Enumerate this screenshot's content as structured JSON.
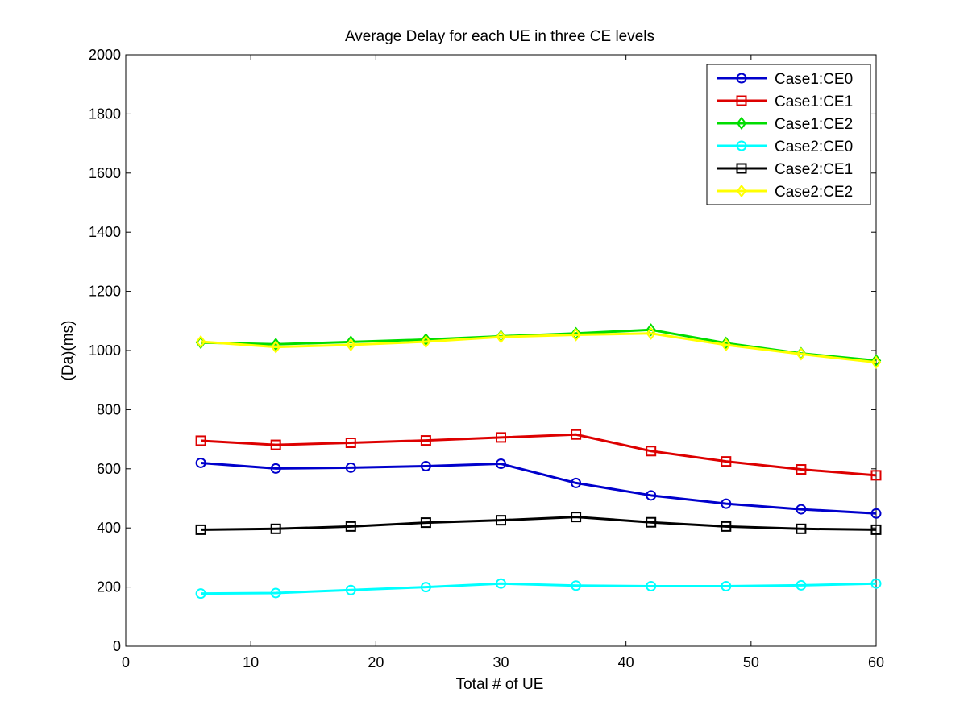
{
  "chart_data": {
    "type": "line",
    "title": "Average Delay for each UE in three CE levels",
    "xlabel": "Total # of UE",
    "ylabel": "(Da)(ms)",
    "xlim": [
      0,
      60
    ],
    "ylim": [
      0,
      2000
    ],
    "xticks": [
      0,
      10,
      20,
      30,
      40,
      50,
      60
    ],
    "yticks": [
      0,
      200,
      400,
      600,
      800,
      1000,
      1200,
      1400,
      1600,
      1800,
      2000
    ],
    "grid": false,
    "legend_position": "top-right",
    "x": [
      6,
      12,
      18,
      24,
      30,
      36,
      42,
      48,
      54,
      60
    ],
    "series": [
      {
        "name": "Case1:CE0",
        "color": "#0000cc",
        "marker": "circle",
        "values": [
          620,
          601,
          604,
          609,
          617,
          552,
          510,
          482,
          463,
          449
        ]
      },
      {
        "name": "Case1:CE1",
        "color": "#dd0000",
        "marker": "square",
        "values": [
          695,
          681,
          688,
          696,
          706,
          716,
          660,
          625,
          598,
          578
        ]
      },
      {
        "name": "Case1:CE2",
        "color": "#00dd00",
        "marker": "diamond",
        "values": [
          1027,
          1021,
          1029,
          1037,
          1048,
          1058,
          1070,
          1025,
          990,
          966
        ]
      },
      {
        "name": "Case2:CE0",
        "color": "#00ffff",
        "marker": "circle",
        "values": [
          178,
          180,
          190,
          200,
          212,
          205,
          203,
          203,
          206,
          212
        ]
      },
      {
        "name": "Case2:CE1",
        "color": "#000000",
        "marker": "square",
        "values": [
          394,
          397,
          405,
          418,
          426,
          437,
          419,
          405,
          397,
          394
        ]
      },
      {
        "name": "Case2:CE2",
        "color": "#ffff00",
        "marker": "diamond",
        "values": [
          1030,
          1012,
          1019,
          1030,
          1046,
          1053,
          1058,
          1019,
          988,
          960
        ]
      }
    ]
  }
}
